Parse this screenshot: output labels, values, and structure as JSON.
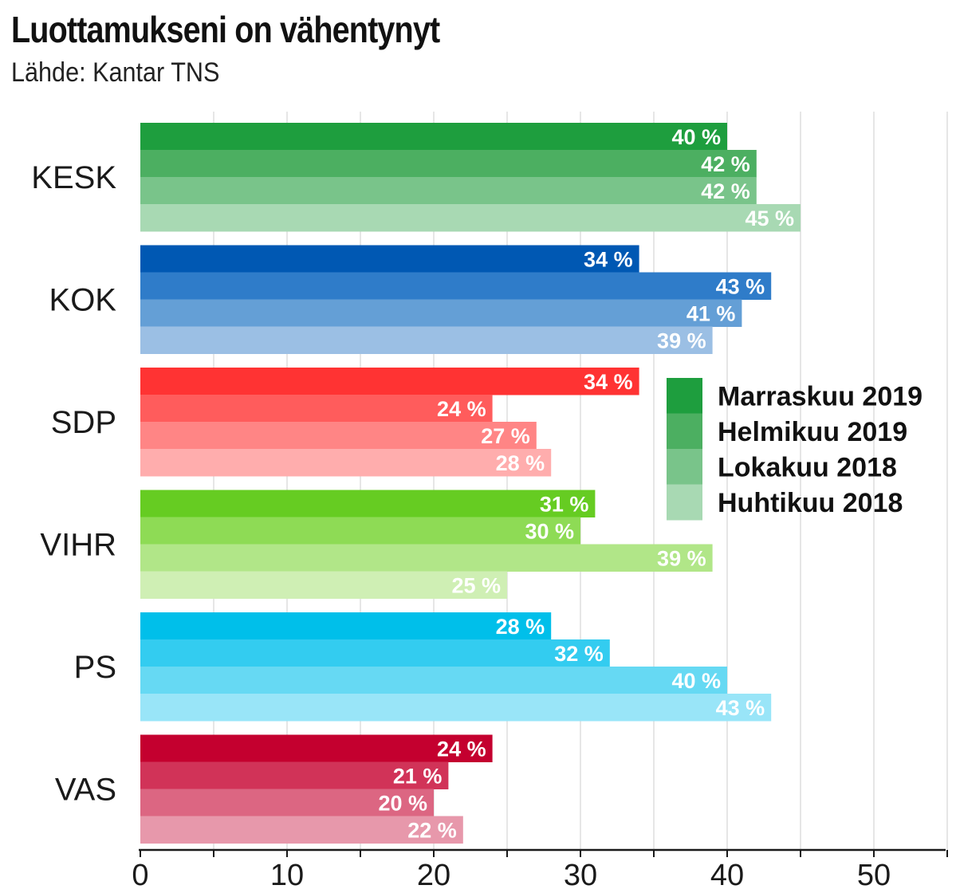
{
  "chart_data": {
    "type": "bar",
    "orientation": "horizontal",
    "title": "Luottamukseni on vähentynyt",
    "subtitle": "Lähde: Kantar TNS",
    "categories": [
      "KESK",
      "KOK",
      "SDP",
      "VIHR",
      "PS",
      "VAS"
    ],
    "series": [
      {
        "name": "Marraskuu 2019",
        "values": [
          40,
          34,
          34,
          31,
          28,
          24
        ]
      },
      {
        "name": "Helmikuu 2019",
        "values": [
          42,
          43,
          24,
          30,
          32,
          21
        ]
      },
      {
        "name": "Lokakuu 2018",
        "values": [
          42,
          41,
          27,
          39,
          40,
          20
        ]
      },
      {
        "name": "Huhtikuu 2018",
        "values": [
          45,
          39,
          28,
          25,
          43,
          22
        ]
      }
    ],
    "value_suffix": " %",
    "xlim": [
      0,
      55
    ],
    "xticks": [
      0,
      10,
      20,
      30,
      40,
      50
    ],
    "grid": true,
    "legend": "right",
    "colors": {
      "KESK": [
        "#1e9e3e",
        "#4caf61",
        "#79c48a",
        "#a8d9b3"
      ],
      "KOK": [
        "#0058b3",
        "#2f7cc9",
        "#649fd6",
        "#9bbfe4"
      ],
      "SDP": [
        "#ff3333",
        "#ff5c5c",
        "#ff8585",
        "#ffadad"
      ],
      "VIHR": [
        "#66cc22",
        "#8edb55",
        "#b1e688",
        "#cfefb4"
      ],
      "PS": [
        "#00bfea",
        "#33ccf0",
        "#66d9f3",
        "#99e5f8"
      ],
      "VAS": [
        "#c4002f",
        "#d13358",
        "#dc6682",
        "#e798ab"
      ]
    },
    "legend_colors": [
      "#1e9e3e",
      "#4caf61",
      "#79c48a",
      "#a8d9b3"
    ]
  }
}
